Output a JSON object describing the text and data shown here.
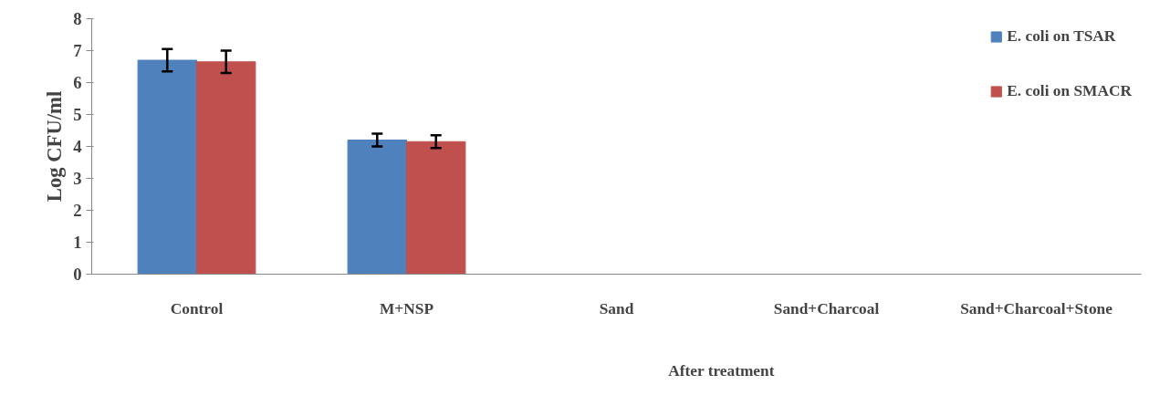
{
  "chart_data": {
    "type": "bar",
    "ylabel": "Log CFU/ml",
    "categories": [
      "Control",
      "M+NSP",
      "Sand",
      "Sand+Charcoal",
      "Sand+Charcoal+Stone"
    ],
    "series": [
      {
        "name": "E. coli on TSAR",
        "color": "#4f81bd",
        "values": [
          6.7,
          4.2,
          0,
          0,
          0
        ],
        "errors": [
          0.35,
          0.2,
          null,
          null,
          null
        ]
      },
      {
        "name": "E. coli on SMACR",
        "color": "#c0504d",
        "values": [
          6.65,
          4.15,
          0,
          0,
          0
        ],
        "errors": [
          0.35,
          0.2,
          null,
          null,
          null
        ]
      }
    ],
    "annotations": [
      "After treatment"
    ],
    "ylim": [
      0,
      8
    ],
    "yticks": [
      0,
      1,
      2,
      3,
      4,
      5,
      6,
      7,
      8
    ],
    "grid": false,
    "legend": "top right"
  }
}
